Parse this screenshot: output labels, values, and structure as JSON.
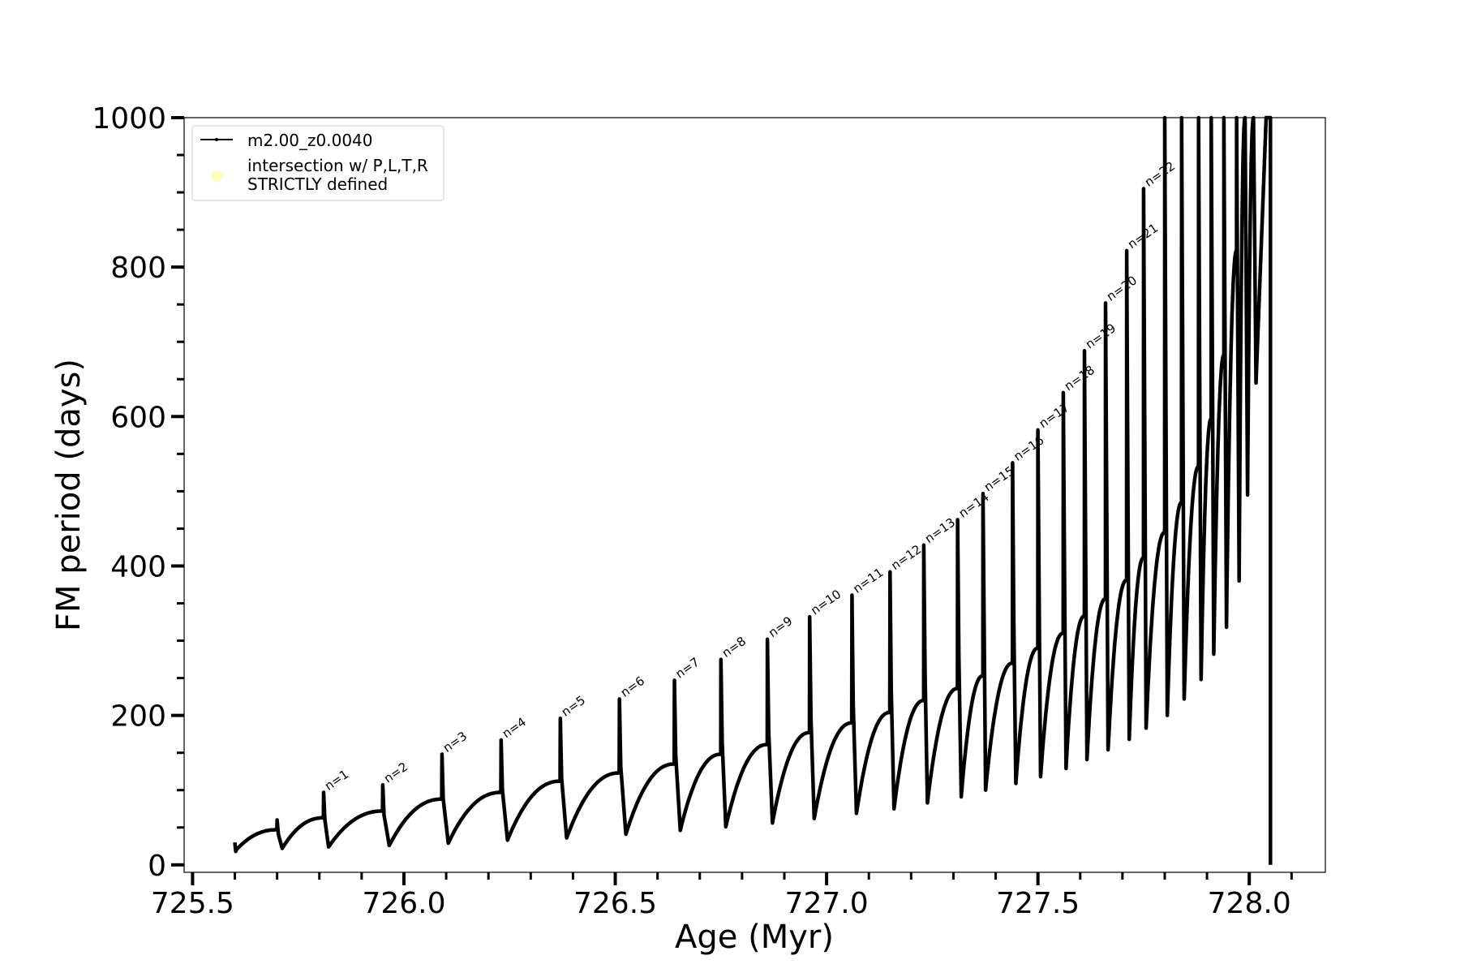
{
  "chart_data": {
    "type": "line",
    "xlabel": "Age (Myr)",
    "ylabel": "FM period (days)",
    "xlim": [
      725.48,
      728.18
    ],
    "ylim": [
      -10,
      1000
    ],
    "x_ticks": [
      "725.5",
      "726.0",
      "726.5",
      "727.0",
      "727.5",
      "728.0"
    ],
    "y_ticks": [
      "0",
      "200",
      "400",
      "600",
      "800",
      "1000"
    ],
    "grid": false,
    "legend_position": "upper-left",
    "series": [
      {
        "name": "m2.00_z0.0040",
        "color": "#000000",
        "marker": "small dot",
        "start_point": {
          "x": 725.6,
          "y": 30
        },
        "first_pulse_min": 18,
        "cycles": [
          {
            "t_pulse": 725.7,
            "peak": 60,
            "pre": 47,
            "min": 22
          },
          {
            "t_pulse": 725.81,
            "peak": 97,
            "pre": 63,
            "min": 24,
            "label": "n=1"
          },
          {
            "t_pulse": 725.95,
            "peak": 107,
            "pre": 72,
            "min": 26,
            "label": "n=2"
          },
          {
            "t_pulse": 726.09,
            "peak": 148,
            "pre": 88,
            "min": 29,
            "label": "n=3"
          },
          {
            "t_pulse": 726.23,
            "peak": 167,
            "pre": 97,
            "min": 33,
            "label": "n=4"
          },
          {
            "t_pulse": 726.37,
            "peak": 196,
            "pre": 112,
            "min": 36,
            "label": "n=5"
          },
          {
            "t_pulse": 726.51,
            "peak": 222,
            "pre": 123,
            "min": 41,
            "label": "n=6"
          },
          {
            "t_pulse": 726.64,
            "peak": 247,
            "pre": 135,
            "min": 46,
            "label": "n=7"
          },
          {
            "t_pulse": 726.75,
            "peak": 275,
            "pre": 148,
            "min": 51,
            "label": "n=8"
          },
          {
            "t_pulse": 726.86,
            "peak": 302,
            "pre": 161,
            "min": 56,
            "label": "n=9"
          },
          {
            "t_pulse": 726.96,
            "peak": 332,
            "pre": 177,
            "min": 62,
            "label": "n=10"
          },
          {
            "t_pulse": 727.06,
            "peak": 361,
            "pre": 190,
            "min": 69,
            "label": "n=11"
          },
          {
            "t_pulse": 727.15,
            "peak": 392,
            "pre": 204,
            "min": 75,
            "label": "n=12"
          },
          {
            "t_pulse": 727.23,
            "peak": 428,
            "pre": 220,
            "min": 83,
            "label": "n=13"
          },
          {
            "t_pulse": 727.31,
            "peak": 462,
            "pre": 236,
            "min": 91,
            "label": "n=14"
          },
          {
            "t_pulse": 727.37,
            "peak": 497,
            "pre": 253,
            "min": 100,
            "label": "n=15"
          },
          {
            "t_pulse": 727.44,
            "peak": 538,
            "pre": 270,
            "min": 109,
            "label": "n=16"
          },
          {
            "t_pulse": 727.5,
            "peak": 582,
            "pre": 290,
            "min": 118,
            "label": "n=17"
          },
          {
            "t_pulse": 727.56,
            "peak": 632,
            "pre": 310,
            "min": 129,
            "label": "n=18"
          },
          {
            "t_pulse": 727.61,
            "peak": 688,
            "pre": 333,
            "min": 141,
            "label": "n=19"
          },
          {
            "t_pulse": 727.66,
            "peak": 752,
            "pre": 356,
            "min": 154,
            "label": "n=20"
          },
          {
            "t_pulse": 727.71,
            "peak": 822,
            "pre": 381,
            "min": 168,
            "label": "n=21"
          },
          {
            "t_pulse": 727.75,
            "peak": 905,
            "pre": 411,
            "min": 183,
            "label": "n=22"
          },
          {
            "t_pulse": 727.8,
            "peak": 1000,
            "pre": 445,
            "min": 200
          },
          {
            "t_pulse": 727.84,
            "peak": 1000,
            "pre": 485,
            "min": 222
          },
          {
            "t_pulse": 727.88,
            "peak": 1000,
            "pre": 533,
            "min": 248
          },
          {
            "t_pulse": 727.91,
            "peak": 1000,
            "pre": 597,
            "min": 282
          },
          {
            "t_pulse": 727.94,
            "peak": 1000,
            "pre": 682,
            "min": 318
          },
          {
            "t_pulse": 727.97,
            "peak": 1000,
            "pre": 822,
            "min": 380
          },
          {
            "t_pulse": 727.99,
            "peak": 1000,
            "pre": 1000,
            "min": 495
          },
          {
            "t_pulse": 728.01,
            "peak": 1000,
            "pre": 1000,
            "min": 645
          }
        ],
        "final_drop": {
          "x": 728.05,
          "y": 0
        }
      },
      {
        "name": "intersection w/ P,L,T,R\nSTRICTLY defined",
        "color": "#ffffb3",
        "marker": "circle",
        "points": []
      }
    ]
  },
  "legend": {
    "entries": [
      {
        "label": "m2.00_z0.0040"
      },
      {
        "label_line1": "intersection w/ P,L,T,R",
        "label_line2": "STRICTLY defined"
      }
    ]
  }
}
